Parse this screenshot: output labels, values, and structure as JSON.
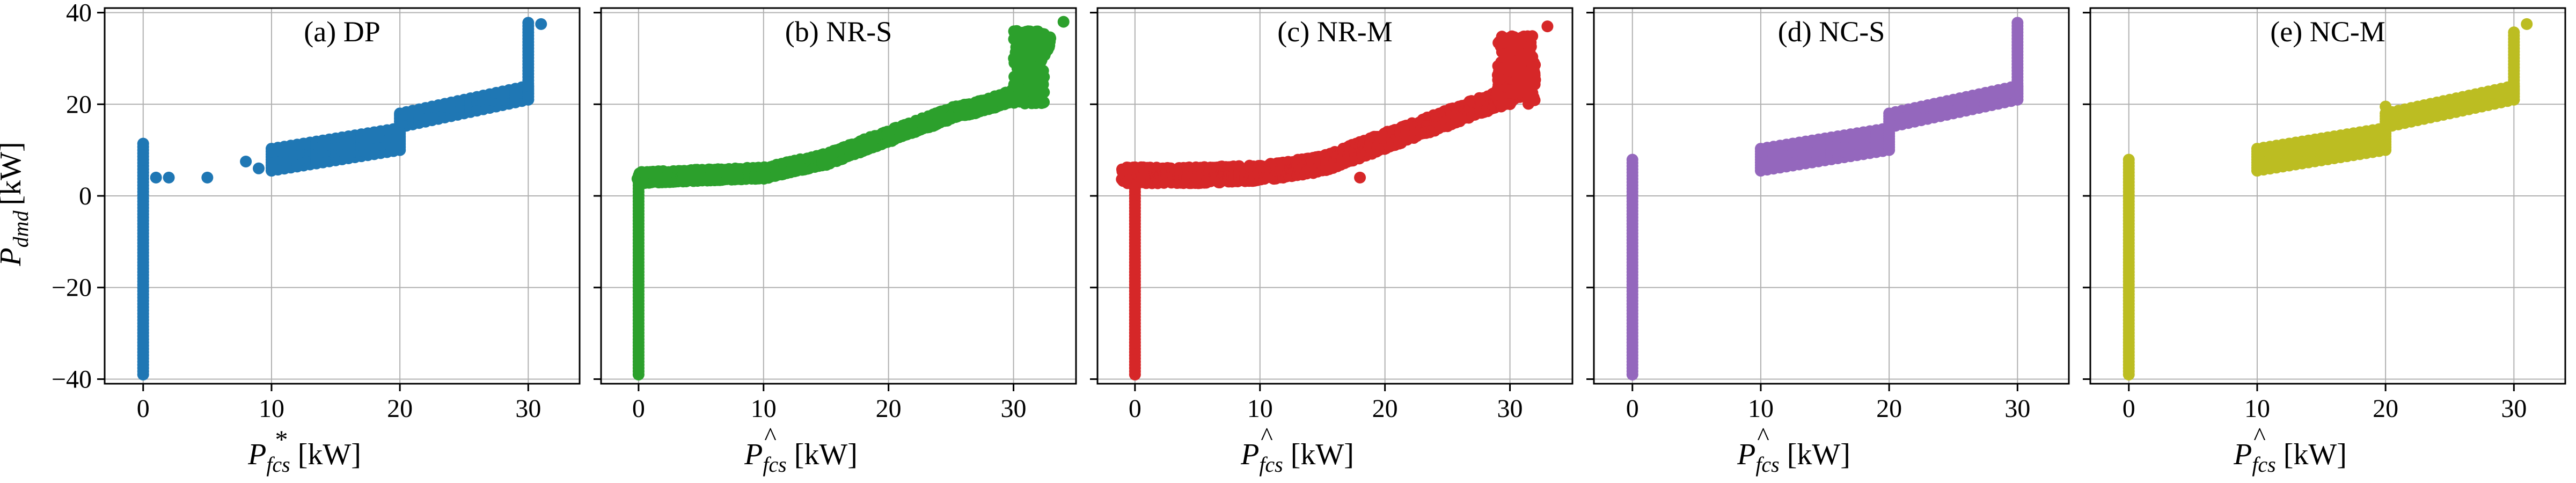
{
  "figure": {
    "ylabel_symbol": "P",
    "ylabel_subscript": "dmd",
    "ylabel_unit": "[kW]"
  },
  "chart_data": [
    {
      "type": "scatter",
      "title": "(a) DP",
      "xlabel_symbol": "P",
      "xlabel_mark": "*",
      "xlabel_subscript": "fcs",
      "xlabel_unit": "[kW]",
      "color": "#1f77b4",
      "xlim": [
        -3,
        34
      ],
      "ylim": [
        -41,
        41
      ],
      "xticks": [
        0,
        10,
        20,
        30
      ],
      "yticks": [
        -40,
        -20,
        0,
        20,
        40
      ],
      "grid": true,
      "vertical_segments": [
        {
          "x": 0,
          "y_min": -39,
          "y_max": 12
        },
        {
          "x": 20,
          "y_min": 10,
          "y_max": 18
        },
        {
          "x": 30,
          "y_min": 21,
          "y_max": 38
        }
      ],
      "stair_segments": [
        {
          "x_start": 10,
          "x_end": 20,
          "y_start": 5.5,
          "y_end": 10,
          "spread": 5
        },
        {
          "x_start": 20,
          "x_end": 30,
          "y_start": 15,
          "y_end": 21,
          "spread": 3
        }
      ],
      "points": [
        [
          1,
          4
        ],
        [
          2,
          4
        ],
        [
          5,
          4
        ],
        [
          8,
          7.5
        ],
        [
          9,
          6
        ],
        [
          21,
          18.5
        ],
        [
          31,
          37.5
        ]
      ]
    },
    {
      "type": "scatter",
      "title": "(b) NR-S",
      "xlabel_symbol": "P",
      "xlabel_mark": "^",
      "xlabel_subscript": "fcs",
      "xlabel_unit": "[kW]",
      "color": "#2ca02c",
      "xlim": [
        -3,
        35
      ],
      "ylim": [
        -41,
        41
      ],
      "xticks": [
        0,
        10,
        20,
        30
      ],
      "yticks": [],
      "grid": true,
      "vertical_segments": [
        {
          "x": 0,
          "y_min": -39,
          "y_max": 4
        }
      ],
      "curve": {
        "x": [
          0,
          5,
          10,
          15,
          20,
          25,
          28,
          30,
          31,
          32,
          33
        ],
        "y": [
          4,
          4.5,
          5,
          8,
          13,
          18,
          20,
          22,
          26,
          30,
          34
        ],
        "spread": 2.5
      },
      "clusters": [
        {
          "x_min": 30,
          "x_max": 32.5,
          "y_min": 20,
          "y_max": 36
        }
      ],
      "points": [
        [
          34,
          38
        ]
      ]
    },
    {
      "type": "scatter",
      "title": "(c) NR-M",
      "xlabel_symbol": "P",
      "xlabel_mark": "^",
      "xlabel_subscript": "fcs",
      "xlabel_unit": "[kW]",
      "color": "#d62728",
      "xlim": [
        -3,
        35
      ],
      "ylim": [
        -41,
        41
      ],
      "xticks": [
        0,
        10,
        20,
        30
      ],
      "yticks": [],
      "grid": true,
      "vertical_segments": [
        {
          "x": 0,
          "y_min": -39,
          "y_max": 4
        }
      ],
      "curve": {
        "x": [
          -1,
          5,
          10,
          15,
          20,
          25,
          28,
          30,
          31,
          32
        ],
        "y": [
          4.5,
          4.5,
          5,
          7,
          12,
          17,
          20,
          22,
          24,
          26
        ],
        "spread": 3.5
      },
      "clusters": [
        {
          "x_min": 29,
          "x_max": 32,
          "y_min": 20,
          "y_max": 35
        }
      ],
      "points": [
        [
          18,
          4
        ],
        [
          33,
          37
        ]
      ]
    },
    {
      "type": "scatter",
      "title": "(d) NC-S",
      "xlabel_symbol": "P",
      "xlabel_mark": "^",
      "xlabel_subscript": "fcs",
      "xlabel_unit": "[kW]",
      "color": "#9467bd",
      "xlim": [
        -3,
        34
      ],
      "ylim": [
        -41,
        41
      ],
      "xticks": [
        0,
        10,
        20,
        30
      ],
      "yticks": [],
      "grid": true,
      "vertical_segments": [
        {
          "x": 0,
          "y_min": -39,
          "y_max": 8
        },
        {
          "x": 30,
          "y_min": 21,
          "y_max": 38
        }
      ],
      "stair_segments": [
        {
          "x_start": 10,
          "x_end": 20,
          "y_start": 5.5,
          "y_end": 10,
          "spread": 5
        },
        {
          "x_start": 20,
          "x_end": 30,
          "y_start": 15,
          "y_end": 21,
          "spread": 3
        }
      ],
      "points": []
    },
    {
      "type": "scatter",
      "title": "(e) NC-M",
      "xlabel_symbol": "P",
      "xlabel_mark": "^",
      "xlabel_subscript": "fcs",
      "xlabel_unit": "[kW]",
      "color": "#bcbd22",
      "xlim": [
        -3,
        34
      ],
      "ylim": [
        -41,
        41
      ],
      "xticks": [
        0,
        10,
        20,
        30
      ],
      "yticks": [],
      "grid": true,
      "vertical_segments": [
        {
          "x": 0,
          "y_min": -39,
          "y_max": 8
        },
        {
          "x": 30,
          "y_min": 21,
          "y_max": 36
        }
      ],
      "stair_segments": [
        {
          "x_start": 10,
          "x_end": 20,
          "y_start": 5.5,
          "y_end": 10,
          "spread": 5
        },
        {
          "x_start": 20,
          "x_end": 30,
          "y_start": 15,
          "y_end": 21,
          "spread": 3
        }
      ],
      "points": [
        [
          20,
          19.5
        ],
        [
          31,
          37.5
        ]
      ]
    }
  ]
}
